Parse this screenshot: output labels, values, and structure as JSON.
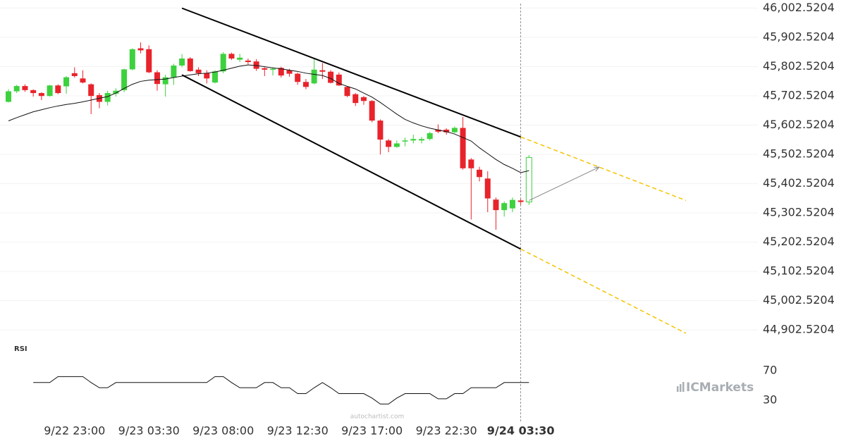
{
  "chart_data": {
    "type": "candlestick",
    "categories": [
      null,
      null,
      null,
      null,
      null,
      null,
      null,
      null,
      "9/22 23:00",
      null,
      null,
      null,
      null,
      null,
      null,
      null,
      null,
      "9/23 03:30",
      null,
      null,
      null,
      null,
      null,
      null,
      null,
      null,
      "9/23 08:00",
      null,
      null,
      null,
      null,
      null,
      null,
      null,
      null,
      "9/23 12:30",
      null,
      null,
      null,
      null,
      null,
      null,
      null,
      null,
      "9/23 17:00",
      null,
      null,
      null,
      null,
      null,
      null,
      null,
      null,
      "9/23 22:30",
      null,
      null,
      null,
      null,
      null,
      null,
      null,
      null,
      "9/24 03:30",
      null
    ],
    "open": [
      45682,
      45718,
      45736,
      45722,
      45712,
      45702,
      45738,
      45735,
      45780,
      45762,
      45742,
      45705,
      45682,
      45710,
      45722,
      45793,
      45865,
      45862,
      45783,
      45742,
      45766,
      45806,
      45830,
      45792,
      45780,
      45748,
      45786,
      45846,
      45826,
      45823,
      45820,
      45797,
      45792,
      45798,
      45790,
      45778,
      45750,
      45745,
      45790,
      45785,
      45775,
      45733,
      45708,
      45698,
      45685,
      45618,
      45550,
      45528,
      45548,
      45550,
      45550,
      45555,
      45587,
      45587,
      45578,
      45593,
      45485,
      45450,
      45420,
      45348,
      45312,
      45318,
      45345,
      45340
    ],
    "high": [
      45725,
      45740,
      45742,
      45725,
      45715,
      45740,
      45742,
      45770,
      45800,
      45790,
      45745,
      45712,
      45720,
      45728,
      45795,
      45865,
      45885,
      45875,
      45790,
      45775,
      45812,
      45845,
      45835,
      45800,
      45790,
      45790,
      45852,
      45850,
      45846,
      45830,
      45828,
      45800,
      45800,
      45802,
      45795,
      45782,
      45760,
      45828,
      45815,
      45790,
      45782,
      45736,
      45712,
      45702,
      45688,
      45622,
      45555,
      45550,
      45560,
      45570,
      45562,
      45580,
      45605,
      45592,
      45598,
      45630,
      45490,
      45460,
      45445,
      45355,
      45342,
      45355,
      45350,
      45500
    ],
    "low": [
      45680,
      45712,
      45716,
      45700,
      45688,
      45700,
      45708,
      45710,
      45765,
      45745,
      45640,
      45660,
      45670,
      45700,
      45715,
      45790,
      45848,
      45780,
      45720,
      45700,
      45740,
      45800,
      45785,
      45770,
      45745,
      45745,
      45780,
      45825,
      45818,
      45810,
      45788,
      45770,
      45772,
      45765,
      45768,
      45740,
      45725,
      45742,
      45760,
      45745,
      45736,
      45698,
      45668,
      45672,
      45612,
      45502,
      45510,
      45525,
      45530,
      45540,
      45540,
      45550,
      45575,
      45570,
      45575,
      45450,
      45280,
      45410,
      45305,
      45245,
      45290,
      45305,
      45330,
      45330
    ],
    "close": [
      45718,
      45736,
      45722,
      45712,
      45702,
      45738,
      45712,
      45766,
      45770,
      45748,
      45702,
      45682,
      45712,
      45720,
      45793,
      45862,
      45858,
      45783,
      45743,
      45766,
      45806,
      45830,
      45787,
      45780,
      45762,
      45786,
      45846,
      45830,
      45833,
      45818,
      45795,
      45792,
      45795,
      45772,
      45778,
      45750,
      45733,
      45792,
      45785,
      45747,
      45738,
      45702,
      45678,
      45685,
      45618,
      45553,
      45528,
      45540,
      45550,
      45555,
      45555,
      45575,
      45580,
      45578,
      45593,
      45455,
      45455,
      45425,
      45352,
      45312,
      45336,
      45347,
      45340,
      45492
    ],
    "ma": [
      45617,
      45628,
      45638,
      45648,
      45655,
      45662,
      45668,
      45673,
      45677,
      45682,
      45688,
      45694,
      45700,
      45712,
      45728,
      45742,
      45752,
      45756,
      45758,
      45760,
      45765,
      45770,
      45774,
      45778,
      45780,
      45784,
      45790,
      45797,
      45804,
      45808,
      45806,
      45802,
      45798,
      45795,
      45790,
      45786,
      45780,
      45776,
      45772,
      45762,
      45745,
      45735,
      45726,
      45712,
      45698,
      45680,
      45660,
      45640,
      45622,
      45610,
      45600,
      45592,
      45586,
      45580,
      45572,
      45560,
      45548,
      45525,
      45505,
      45485,
      45468,
      45455,
      45440,
      45447
    ],
    "up_color": "#3dd13e",
    "down_color": "#e8232b",
    "ma_color": "#111111",
    "hollow_last": true,
    "ylim": [
      44850,
      46030
    ],
    "yticks": [
      {
        "value": 46002.5204,
        "label": "46,002.5204"
      },
      {
        "value": 45902.5204,
        "label": "45,902.5204"
      },
      {
        "value": 45802.5204,
        "label": "45,802.5204"
      },
      {
        "value": 45702.5204,
        "label": "45,702.5204"
      },
      {
        "value": 45602.5204,
        "label": "45,602.5204"
      },
      {
        "value": 45502.5204,
        "label": "45,502.5204"
      },
      {
        "value": 45402.5204,
        "label": "45,402.5204"
      },
      {
        "value": 45302.5204,
        "label": "45,302.5204"
      },
      {
        "value": 45202.5204,
        "label": "45,202.5204"
      },
      {
        "value": 45102.5204,
        "label": "45,102.5204"
      },
      {
        "value": 45002.5204,
        "label": "45,002.5204"
      },
      {
        "value": 44902.5204,
        "label": "44,902.5204"
      }
    ],
    "grid": true,
    "channel_upper": [
      [
        21,
        46002
      ],
      [
        62,
        45562
      ]
    ],
    "channel_lower": [
      [
        21,
        45774
      ],
      [
        62,
        45179
      ]
    ],
    "projection_upper": [
      [
        62,
        45562
      ],
      [
        82,
        45345
      ]
    ],
    "projection_lower": [
      [
        62,
        45179
      ],
      [
        82,
        44891
      ]
    ],
    "arrow": [
      [
        63,
        45345
      ],
      [
        71.5,
        45459
      ]
    ],
    "rsi": {
      "label": "RSI",
      "values": [
        null,
        null,
        null,
        54,
        54,
        54,
        62,
        62,
        62,
        62,
        54,
        47,
        47,
        54,
        54,
        54,
        54,
        54,
        54,
        54,
        54,
        54,
        54,
        54,
        54,
        62,
        62,
        54,
        47,
        47,
        47,
        54,
        54,
        47,
        47,
        39,
        39,
        47,
        54,
        47,
        39,
        39,
        39,
        39,
        33,
        25,
        25,
        33,
        39,
        39,
        39,
        39,
        32,
        32,
        39,
        39,
        47,
        47,
        47,
        47,
        54,
        54,
        54,
        54
      ],
      "ylim": [
        0,
        100
      ],
      "yticks": [
        70,
        30
      ]
    },
    "watermark": "autochartist.com",
    "logo": "ICMarkets"
  }
}
